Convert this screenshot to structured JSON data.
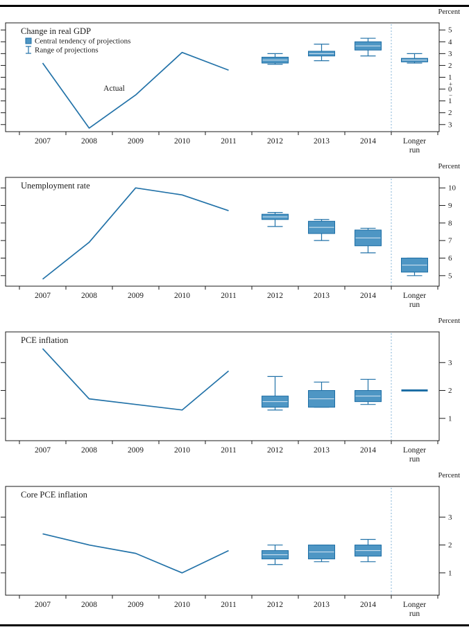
{
  "figure": {
    "unit_label": "Percent",
    "legend": {
      "central_tendency": "Central tendency of projections",
      "range": "Range of projections"
    },
    "actual_annotation": "Actual"
  },
  "colors": {
    "line": "#2272a8",
    "box_fill": "#4e96c4",
    "box_stroke": "#1d6ea5",
    "box_midline": "#eaf2f8",
    "separator": "#7fb0d6",
    "axis": "#1a1a1a"
  },
  "chart_data": [
    {
      "type": "line+box-whisker",
      "title": "Change in real GDP",
      "ylabel": "Percent",
      "y_min": -3.6,
      "y_max": 5.6,
      "y_ticks": [
        5,
        4,
        3,
        2,
        1,
        0,
        -1,
        -2,
        -3
      ],
      "zero_plus_minus": true,
      "categories": [
        "2007",
        "2008",
        "2009",
        "2010",
        "2011",
        "2012",
        "2013",
        "2014",
        "Longer run"
      ],
      "separator_before": "Longer run",
      "show_actual_annotation": true,
      "show_legend": true,
      "actual": {
        "label": "Actual",
        "categories": [
          "2007",
          "2008",
          "2009",
          "2010",
          "2011"
        ],
        "values": [
          2.2,
          -3.3,
          -0.5,
          3.1,
          1.6
        ]
      },
      "projections": [
        {
          "category": "2012",
          "central_tendency": [
            2.2,
            2.7
          ],
          "range": [
            2.1,
            3.0
          ]
        },
        {
          "category": "2013",
          "central_tendency": [
            2.8,
            3.2
          ],
          "range": [
            2.4,
            3.8
          ]
        },
        {
          "category": "2014",
          "central_tendency": [
            3.3,
            4.0
          ],
          "range": [
            2.8,
            4.3
          ]
        },
        {
          "category": "Longer run",
          "central_tendency": [
            2.3,
            2.6
          ],
          "range": [
            2.2,
            3.0
          ]
        }
      ]
    },
    {
      "type": "line+box-whisker",
      "title": "Unemployment rate",
      "ylabel": "Percent",
      "y_min": 4.4,
      "y_max": 10.6,
      "y_ticks": [
        10,
        9,
        8,
        7,
        6,
        5
      ],
      "zero_plus_minus": false,
      "categories": [
        "2007",
        "2008",
        "2009",
        "2010",
        "2011",
        "2012",
        "2013",
        "2014",
        "Longer run"
      ],
      "separator_before": "Longer run",
      "show_actual_annotation": false,
      "show_legend": false,
      "actual": {
        "label": "Actual",
        "categories": [
          "2007",
          "2008",
          "2009",
          "2010",
          "2011"
        ],
        "values": [
          4.8,
          6.9,
          10.0,
          9.6,
          8.7
        ]
      },
      "projections": [
        {
          "category": "2012",
          "central_tendency": [
            8.2,
            8.5
          ],
          "range": [
            7.8,
            8.6
          ]
        },
        {
          "category": "2013",
          "central_tendency": [
            7.4,
            8.1
          ],
          "range": [
            7.0,
            8.2
          ]
        },
        {
          "category": "2014",
          "central_tendency": [
            6.7,
            7.6
          ],
          "range": [
            6.3,
            7.7
          ]
        },
        {
          "category": "Longer run",
          "central_tendency": [
            5.2,
            6.0
          ],
          "range": [
            5.0,
            6.0
          ]
        }
      ]
    },
    {
      "type": "line+box-whisker",
      "title": "PCE inflation",
      "ylabel": "Percent",
      "y_min": 0.2,
      "y_max": 4.1,
      "y_ticks": [
        3,
        2,
        1
      ],
      "zero_plus_minus": false,
      "categories": [
        "2007",
        "2008",
        "2009",
        "2010",
        "2011",
        "2012",
        "2013",
        "2014",
        "Longer run"
      ],
      "separator_before": "Longer run",
      "show_actual_annotation": false,
      "show_legend": false,
      "actual": {
        "label": "Actual",
        "categories": [
          "2007",
          "2008",
          "2009",
          "2010",
          "2011"
        ],
        "values": [
          3.5,
          1.7,
          1.5,
          1.3,
          2.7
        ]
      },
      "projections": [
        {
          "category": "2012",
          "central_tendency": [
            1.4,
            1.8
          ],
          "range": [
            1.3,
            2.5
          ]
        },
        {
          "category": "2013",
          "central_tendency": [
            1.4,
            2.0
          ],
          "range": [
            1.4,
            2.3
          ]
        },
        {
          "category": "2014",
          "central_tendency": [
            1.6,
            2.0
          ],
          "range": [
            1.5,
            2.4
          ]
        },
        {
          "category": "Longer run",
          "central_tendency": [
            2.0,
            2.0
          ],
          "range": [
            2.0,
            2.0
          ]
        }
      ]
    },
    {
      "type": "line+box-whisker",
      "title": "Core PCE inflation",
      "ylabel": "Percent",
      "y_min": 0.2,
      "y_max": 4.1,
      "y_ticks": [
        3,
        2,
        1
      ],
      "zero_plus_minus": false,
      "categories": [
        "2007",
        "2008",
        "2009",
        "2010",
        "2011",
        "2012",
        "2013",
        "2014",
        "Longer run"
      ],
      "separator_before": "Longer run",
      "show_actual_annotation": false,
      "show_legend": false,
      "actual": {
        "label": "Actual",
        "categories": [
          "2007",
          "2008",
          "2009",
          "2010",
          "2011"
        ],
        "values": [
          2.4,
          2.0,
          1.7,
          1.0,
          1.8
        ]
      },
      "projections": [
        {
          "category": "2012",
          "central_tendency": [
            1.5,
            1.8
          ],
          "range": [
            1.3,
            2.0
          ]
        },
        {
          "category": "2013",
          "central_tendency": [
            1.5,
            2.0
          ],
          "range": [
            1.4,
            2.0
          ]
        },
        {
          "category": "2014",
          "central_tendency": [
            1.6,
            2.0
          ],
          "range": [
            1.4,
            2.2
          ]
        }
      ]
    }
  ]
}
